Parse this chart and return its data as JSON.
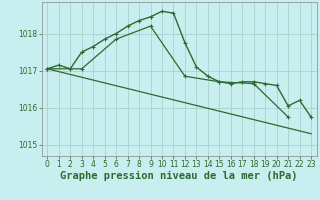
{
  "series1_x": [
    0,
    1,
    2,
    3,
    4,
    5,
    6,
    7,
    8,
    9,
    10,
    11,
    12,
    13,
    14,
    15,
    16,
    17,
    18,
    19,
    20,
    21,
    22,
    23
  ],
  "series1_y": [
    1017.05,
    1017.15,
    1017.05,
    1017.5,
    1017.65,
    1017.85,
    1018.0,
    1018.2,
    1018.35,
    1018.45,
    1018.6,
    1018.55,
    1017.75,
    1017.1,
    1016.85,
    1016.7,
    1016.65,
    1016.7,
    1016.7,
    1016.65,
    1016.6,
    1016.05,
    1016.2,
    1015.75
  ],
  "series2_x": [
    0,
    3,
    6,
    9,
    12,
    15,
    18,
    21
  ],
  "series2_y": [
    1017.05,
    1017.05,
    1017.85,
    1018.2,
    1016.85,
    1016.7,
    1016.65,
    1015.75
  ],
  "series3_x": [
    0,
    23
  ],
  "series3_y": [
    1017.05,
    1015.3
  ],
  "xlim": [
    -0.5,
    23.5
  ],
  "ylim": [
    1014.7,
    1018.85
  ],
  "yticks": [
    1015,
    1016,
    1017,
    1018
  ],
  "xticks": [
    0,
    1,
    2,
    3,
    4,
    5,
    6,
    7,
    8,
    9,
    10,
    11,
    12,
    13,
    14,
    15,
    16,
    17,
    18,
    19,
    20,
    21,
    22,
    23
  ],
  "xlabel": "Graphe pression niveau de la mer (hPa)",
  "bg_color": "#c8eef0",
  "grid_color": "#aacfcf",
  "line_color": "#2d6a2d",
  "tick_fontsize": 5.5,
  "xlabel_fontsize": 7.5,
  "marker_size": 3.0,
  "linewidth1": 1.0,
  "linewidth2": 0.9,
  "linewidth3": 0.9
}
